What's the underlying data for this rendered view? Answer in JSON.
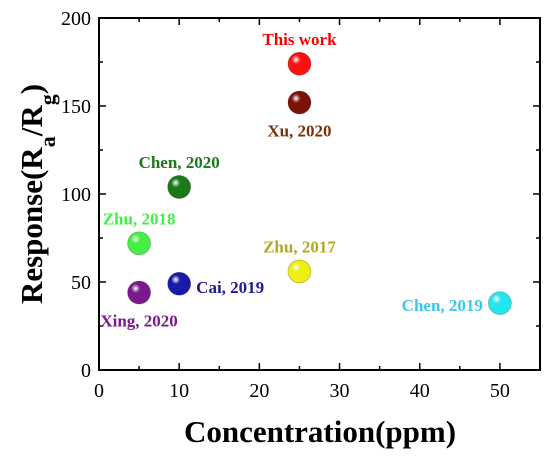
{
  "chart_data": {
    "type": "scatter",
    "xlabel": "Concentration(ppm)",
    "ylabel": {
      "main": "Response(R",
      "sub1": "a",
      "mid": "/R",
      "sub2": "g",
      "end": ")"
    },
    "xlim": [
      0,
      55
    ],
    "ylim": [
      0,
      200
    ],
    "xticks": [
      "0",
      "10",
      "20",
      "30",
      "40",
      "50"
    ],
    "yticks": [
      "0",
      "50",
      "100",
      "150",
      "200"
    ],
    "grid": false,
    "points": [
      {
        "label": "This work",
        "x": 25,
        "y": 174,
        "color": "#ff1010",
        "label_pos": "above"
      },
      {
        "label": "Xu, 2020",
        "x": 25,
        "y": 152,
        "color": "#7a1208",
        "label_pos": "below"
      },
      {
        "label": "Chen, 2020",
        "x": 10,
        "y": 104,
        "color": "#1a7a1a",
        "label_pos": "above"
      },
      {
        "label": "Zhu, 2018",
        "x": 5,
        "y": 72,
        "color": "#44ee44",
        "label_pos": "above"
      },
      {
        "label": "Zhu, 2017",
        "x": 25,
        "y": 56,
        "color": "#eeee10",
        "label_pos": "above"
      },
      {
        "label": "Cai, 2019",
        "x": 10,
        "y": 49,
        "color": "#1a1aaa",
        "label_pos": "right"
      },
      {
        "label": "Xing, 2020",
        "x": 5,
        "y": 44,
        "color": "#7a1a8a",
        "label_pos": "below"
      },
      {
        "label": "Chen, 2019",
        "x": 50,
        "y": 38,
        "color": "#22e6ee",
        "label_pos": "left"
      }
    ],
    "label_colors": {
      "This work": "#ff0000",
      "Xu, 2020": "#7a3008",
      "Chen, 2020": "#1a7a1a",
      "Zhu, 2018": "#44ee44",
      "Zhu, 2017": "#b0aa20",
      "Cai, 2019": "#1a1a9a",
      "Xing, 2020": "#7a1a8a",
      "Chen, 2019": "#3ac8ee"
    }
  }
}
